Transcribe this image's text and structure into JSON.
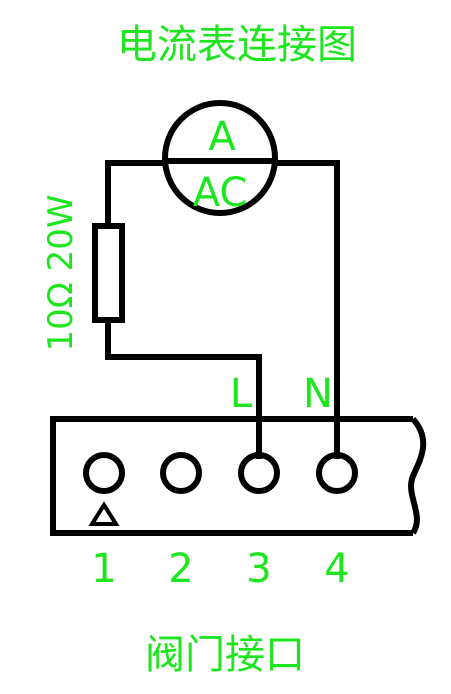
{
  "title": "电流表连接图",
  "ammeter": {
    "top_label": "A",
    "bottom_label": "AC"
  },
  "resistor": {
    "label": "10Ω 20W"
  },
  "wire_labels": {
    "l": "L",
    "n": "N"
  },
  "terminals": [
    {
      "number": "1",
      "marker": "triangle-icon"
    },
    {
      "number": "2"
    },
    {
      "number": "3"
    },
    {
      "number": "4"
    }
  ],
  "connector_label": "阀门接口",
  "colors": {
    "text": "#1ee61e",
    "lines": "#000000",
    "background": "#ffffff"
  }
}
